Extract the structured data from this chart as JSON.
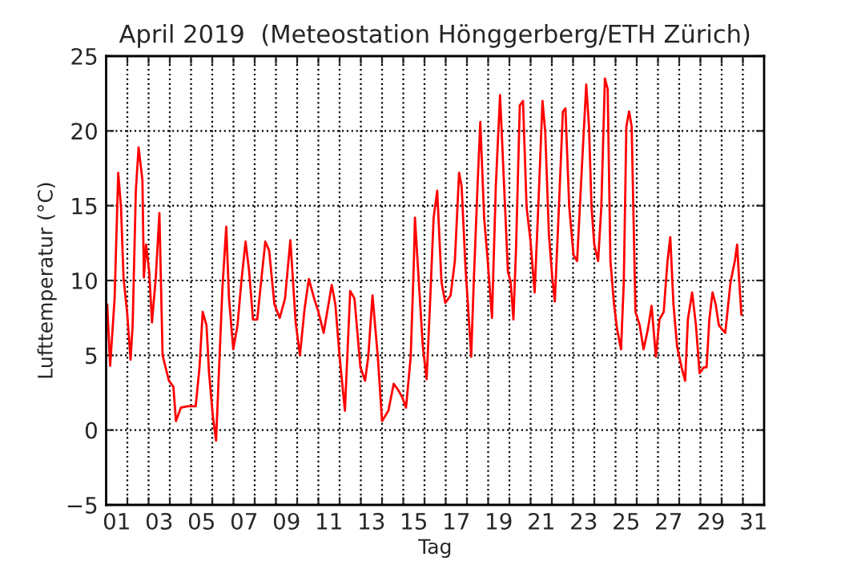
{
  "chart_data": {
    "type": "line",
    "title": "April 2019  (Meteostation Hönggerberg/ETH Zürich)",
    "xlabel": "Tag",
    "ylabel": "Lufttemperatur (°C)",
    "x": [
      1.05,
      1.19,
      1.4,
      1.57,
      1.7,
      1.82,
      2.0,
      2.15,
      2.25,
      2.4,
      2.53,
      2.71,
      2.78,
      2.88,
      3.03,
      3.16,
      3.34,
      3.51,
      3.66,
      3.96,
      4.17,
      4.29,
      4.52,
      4.85,
      5.22,
      5.4,
      5.55,
      5.73,
      5.85,
      6.03,
      6.18,
      6.28,
      6.48,
      6.66,
      6.79,
      6.99,
      7.19,
      7.37,
      7.57,
      7.74,
      7.92,
      8.12,
      8.3,
      8.5,
      8.68,
      8.93,
      9.18,
      9.43,
      9.68,
      9.93,
      10.13,
      10.35,
      10.55,
      10.8,
      11.0,
      11.25,
      11.63,
      11.8,
      12.0,
      12.25,
      12.5,
      12.7,
      12.98,
      13.2,
      13.35,
      13.55,
      13.8,
      14.0,
      14.3,
      14.55,
      14.75,
      14.95,
      15.13,
      15.35,
      15.5,
      15.55,
      15.75,
      15.92,
      16.1,
      16.25,
      16.43,
      16.6,
      16.8,
      16.98,
      17.23,
      17.43,
      17.63,
      17.75,
      17.93,
      18.06,
      18.2,
      18.31,
      18.51,
      18.63,
      18.81,
      18.98,
      19.18,
      19.36,
      19.56,
      19.73,
      19.93,
      20.06,
      20.19,
      20.31,
      20.49,
      20.64,
      20.81,
      20.99,
      21.19,
      21.36,
      21.56,
      21.69,
      21.86,
      22.02,
      22.14,
      22.32,
      22.52,
      22.64,
      22.82,
      23.02,
      23.19,
      23.42,
      23.62,
      23.75,
      23.87,
      24.0,
      24.18,
      24.33,
      24.5,
      24.63,
      24.76,
      24.93,
      25.08,
      25.26,
      25.39,
      25.51,
      25.64,
      25.76,
      25.94,
      26.14,
      26.32,
      26.52,
      26.7,
      26.9,
      27.07,
      27.27,
      27.45,
      27.58,
      27.73,
      27.9,
      28.11,
      28.28,
      28.41,
      28.61,
      28.79,
      28.96,
      29.16,
      29.29,
      29.42,
      29.57,
      29.72,
      29.87,
      30.17,
      30.42,
      30.62,
      30.73,
      30.8,
      30.93
    ],
    "series": [
      {
        "color": "#ff0000",
        "values": [
          8.4,
          4.3,
          8.8,
          17.2,
          14.9,
          10.2,
          7.7,
          4.7,
          7.0,
          16.0,
          18.9,
          16.7,
          10.2,
          12.4,
          10.6,
          7.2,
          10.2,
          14.5,
          5.0,
          3.3,
          2.9,
          0.6,
          1.5,
          1.6,
          1.6,
          4.2,
          7.9,
          7.0,
          3.8,
          0.9,
          -0.7,
          2.7,
          9.5,
          13.6,
          8.8,
          5.4,
          7.0,
          9.9,
          12.6,
          10.6,
          7.4,
          7.4,
          9.9,
          12.6,
          12.0,
          8.4,
          7.5,
          8.8,
          12.7,
          7.2,
          5.0,
          8.1,
          10.1,
          8.8,
          7.9,
          6.5,
          9.7,
          8.4,
          4.9,
          1.3,
          9.3,
          8.8,
          4.2,
          3.3,
          4.9,
          9.0,
          4.9,
          0.6,
          1.3,
          3.1,
          2.7,
          2.2,
          1.5,
          4.9,
          11.3,
          14.2,
          9.5,
          5.6,
          3.4,
          8.1,
          14.2,
          16.0,
          9.9,
          8.5,
          9.0,
          11.3,
          17.2,
          16.3,
          10.9,
          8.1,
          4.9,
          9.5,
          16.7,
          20.6,
          14.2,
          11.3,
          7.5,
          16.3,
          22.4,
          17.0,
          10.6,
          9.9,
          7.4,
          12.0,
          21.7,
          22.0,
          14.9,
          12.7,
          9.2,
          14.9,
          22.0,
          19.9,
          13.1,
          10.2,
          8.6,
          14.5,
          21.3,
          21.5,
          14.9,
          11.7,
          11.3,
          17.7,
          23.1,
          20.3,
          14.9,
          12.4,
          11.3,
          14.9,
          23.5,
          22.8,
          11.3,
          8.4,
          6.7,
          5.4,
          9.9,
          20.3,
          21.3,
          20.3,
          7.9,
          7.0,
          5.4,
          6.7,
          8.3,
          4.9,
          7.4,
          7.9,
          11.3,
          12.9,
          8.4,
          5.6,
          4.2,
          3.3,
          7.4,
          9.2,
          7.0,
          3.8,
          4.2,
          4.2,
          7.4,
          9.2,
          8.4,
          7.0,
          6.5,
          9.9,
          11.3,
          12.4,
          10.6,
          7.7
        ]
      }
    ],
    "xlim": [
      1,
      32
    ],
    "xticks": [
      {
        "value": 2,
        "label": null
      },
      {
        "value": 3,
        "label": null
      },
      {
        "value": 4,
        "label": null
      },
      {
        "value": 5,
        "label": null
      },
      {
        "value": 6,
        "label": null
      },
      {
        "value": 7,
        "label": null
      },
      {
        "value": 8,
        "label": null
      },
      {
        "value": 9,
        "label": null
      },
      {
        "value": 10,
        "label": null
      },
      {
        "value": 11,
        "label": null
      },
      {
        "value": 12,
        "label": null
      },
      {
        "value": 13,
        "label": null
      },
      {
        "value": 14,
        "label": null
      },
      {
        "value": 15,
        "label": null
      },
      {
        "value": 16,
        "label": null
      },
      {
        "value": 17,
        "label": null
      },
      {
        "value": 18,
        "label": null
      },
      {
        "value": 19,
        "label": null
      },
      {
        "value": 20,
        "label": null
      },
      {
        "value": 21,
        "label": null
      },
      {
        "value": 22,
        "label": null
      },
      {
        "value": 23,
        "label": null
      },
      {
        "value": 24,
        "label": null
      },
      {
        "value": 25,
        "label": null
      },
      {
        "value": 26,
        "label": null
      },
      {
        "value": 27,
        "label": null
      },
      {
        "value": 28,
        "label": null
      },
      {
        "value": 29,
        "label": null
      },
      {
        "value": 30,
        "label": null
      },
      {
        "value": 31,
        "label": null
      },
      {
        "value": 1.5,
        "label": "01"
      },
      {
        "value": 3.5,
        "label": "03"
      },
      {
        "value": 5.5,
        "label": "05"
      },
      {
        "value": 7.5,
        "label": "07"
      },
      {
        "value": 9.5,
        "label": "09"
      },
      {
        "value": 11.5,
        "label": "11"
      },
      {
        "value": 13.5,
        "label": "13"
      },
      {
        "value": 15.5,
        "label": "15"
      },
      {
        "value": 17.5,
        "label": "17"
      },
      {
        "value": 19.5,
        "label": "19"
      },
      {
        "value": 21.5,
        "label": "21"
      },
      {
        "value": 23.5,
        "label": "23"
      },
      {
        "value": 25.5,
        "label": "25"
      },
      {
        "value": 27.5,
        "label": "27"
      },
      {
        "value": 29.5,
        "label": "29"
      },
      {
        "value": 31.5,
        "label": "31"
      }
    ],
    "ylim": [
      -5,
      25
    ],
    "yticks": [
      {
        "value": -5,
        "label": "−5"
      },
      0,
      5,
      10,
      15,
      20,
      25
    ],
    "grid": true,
    "line_style": "solid",
    "marker": "none"
  }
}
